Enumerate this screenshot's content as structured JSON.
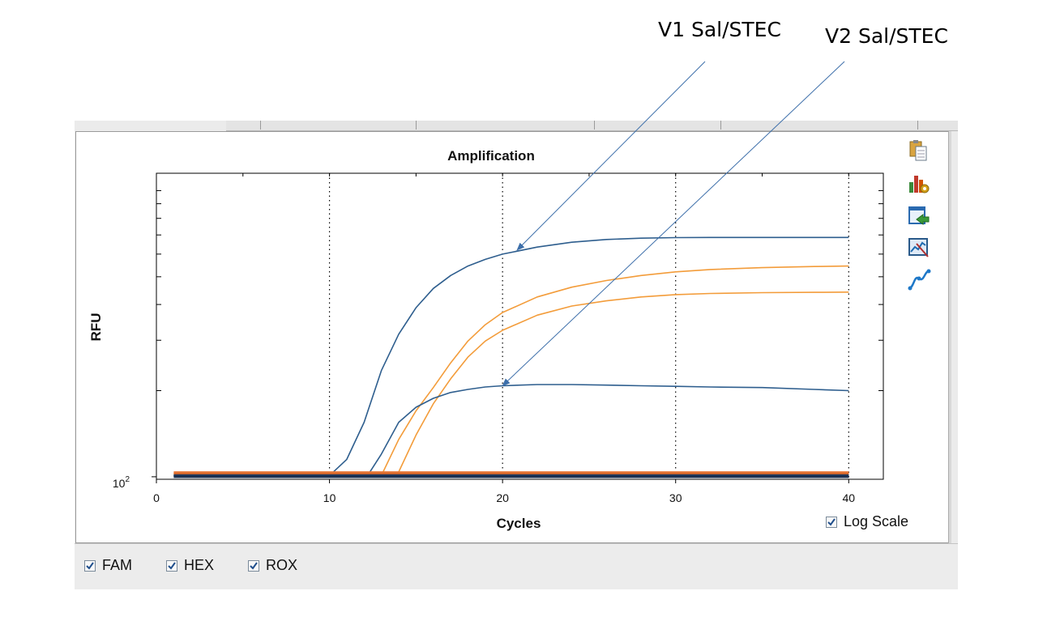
{
  "annotations": [
    {
      "label": "V1 Sal/STEC",
      "points_to": {
        "series": "V1 Sal/STEC",
        "x": 20
      }
    },
    {
      "label": "V2 Sal/STEC",
      "points_to": {
        "series": "V2 Sal/STEC",
        "x": 20
      }
    }
  ],
  "chart_data": {
    "type": "line",
    "title": "Amplification",
    "xlabel": "Cycles",
    "ylabel": "RFU",
    "x_ticks": [
      0,
      10,
      20,
      30,
      40
    ],
    "y_tick_label": "10^2",
    "y_tick_base": "10",
    "y_tick_exp": "2",
    "xlim": [
      0,
      42
    ],
    "ylim": [
      98,
      1150
    ],
    "log_scale": true,
    "grid": "vertical dotted at x ticks",
    "legend": "none",
    "series": [
      {
        "name": "V1 Sal/STEC",
        "color": "#2e5e8e",
        "x": [
          1,
          10,
          11,
          12,
          13,
          14,
          15,
          16,
          17,
          18,
          19,
          20,
          22,
          24,
          26,
          28,
          30,
          32,
          35,
          38,
          40
        ],
        "y": [
          101,
          101,
          115,
          155,
          235,
          315,
          390,
          455,
          505,
          545,
          575,
          600,
          635,
          660,
          675,
          682,
          685,
          686,
          686,
          686,
          686
        ]
      },
      {
        "color": "#f39c3a",
        "x": [
          1,
          13,
          14,
          15,
          16,
          17,
          18,
          19,
          20,
          22,
          24,
          26,
          28,
          30,
          32,
          35,
          38,
          40
        ],
        "y": [
          101,
          101,
          135,
          170,
          205,
          250,
          298,
          340,
          375,
          425,
          460,
          485,
          505,
          520,
          530,
          538,
          543,
          545
        ]
      },
      {
        "color": "#f39c3a",
        "x": [
          1,
          13.5,
          14,
          15,
          16,
          17,
          18,
          19,
          20,
          22,
          24,
          26,
          28,
          30,
          32,
          35,
          38,
          40
        ],
        "y": [
          101,
          101,
          104,
          140,
          180,
          220,
          262,
          298,
          325,
          367,
          395,
          412,
          425,
          433,
          437,
          440,
          441,
          442
        ]
      },
      {
        "name": "V2 Sal/STEC",
        "color": "#2e5e8e",
        "x": [
          1,
          12.2,
          13,
          14,
          15,
          16,
          17,
          18,
          19,
          20,
          22,
          24,
          26,
          28,
          30,
          32,
          35,
          38,
          40
        ],
        "y": [
          101,
          101,
          120,
          155,
          175,
          188,
          197,
          202,
          206,
          208,
          210,
          210,
          209,
          208,
          207,
          206,
          205,
          202,
          200
        ]
      },
      {
        "color": "#e97a3a",
        "x": [
          1,
          40
        ],
        "y": [
          103.5,
          103.5
        ]
      },
      {
        "color": "#d9692a",
        "x": [
          1,
          40
        ],
        "y": [
          102.3,
          102.3
        ]
      },
      {
        "color": "#1f3a5e",
        "x": [
          1,
          40
        ],
        "y": [
          101,
          101
        ]
      },
      {
        "color": "#1a2f50",
        "x": [
          1,
          40
        ],
        "y": [
          100,
          100
        ]
      }
    ]
  },
  "toolbar_icons": [
    {
      "icon": "clipboard-copy-icon"
    },
    {
      "icon": "chart-settings-icon"
    },
    {
      "icon": "export-icon"
    },
    {
      "icon": "chart-tool-icon"
    },
    {
      "icon": "curve-icon"
    }
  ],
  "log_scale": {
    "label": "Log Scale",
    "checked": true
  },
  "channels": [
    {
      "label": "FAM",
      "checked": true
    },
    {
      "label": "HEX",
      "checked": true
    },
    {
      "label": "ROX",
      "checked": true
    }
  ],
  "colors": {
    "blue": "#2e5e8e",
    "orange": "#f39c3a",
    "arrow": "#3d6faa"
  }
}
